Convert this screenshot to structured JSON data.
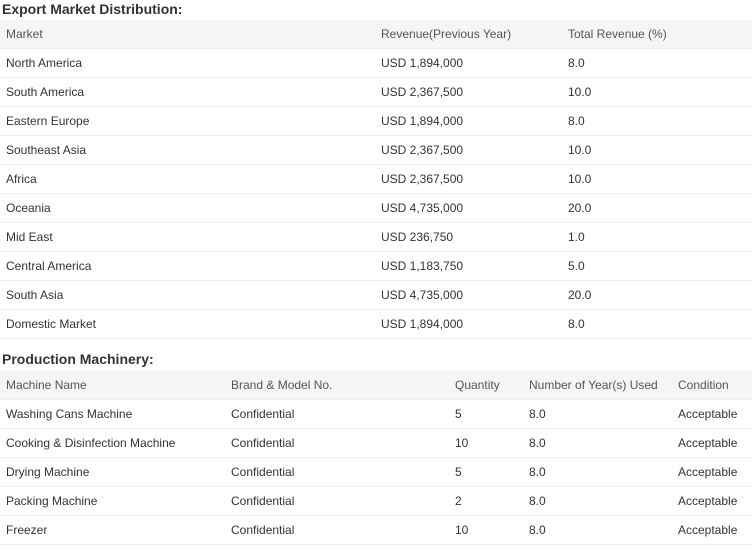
{
  "export": {
    "title": "Export Market Distribution:",
    "headers": [
      "Market",
      "Revenue(Previous Year)",
      "Total Revenue (%)"
    ],
    "rows": [
      [
        "North America",
        "USD 1,894,000",
        "8.0"
      ],
      [
        "South America",
        "USD 2,367,500",
        "10.0"
      ],
      [
        "Eastern Europe",
        "USD 1,894,000",
        "8.0"
      ],
      [
        "Southeast Asia",
        "USD 2,367,500",
        "10.0"
      ],
      [
        "Africa",
        "USD 2,367,500",
        "10.0"
      ],
      [
        "Oceania",
        "USD 4,735,000",
        "20.0"
      ],
      [
        "Mid East",
        "USD 236,750",
        "1.0"
      ],
      [
        "Central America",
        "USD 1,183,750",
        "5.0"
      ],
      [
        "South Asia",
        "USD 4,735,000",
        "20.0"
      ],
      [
        "Domestic Market",
        "USD 1,894,000",
        "8.0"
      ]
    ]
  },
  "machinery": {
    "title": "Production Machinery:",
    "headers": [
      "Machine Name",
      "Brand & Model No.",
      "Quantity",
      "Number of Year(s) Used",
      "Condition"
    ],
    "rows": [
      [
        "Washing Cans Machine",
        "Confidential",
        "5",
        "8.0",
        "Acceptable"
      ],
      [
        "Cooking & Disinfection Machine",
        "Confidential",
        "10",
        "8.0",
        "Acceptable"
      ],
      [
        "Drying Machine",
        "Confidential",
        "5",
        "8.0",
        "Acceptable"
      ],
      [
        "Packing Machine",
        "Confidential",
        "2",
        "8.0",
        "Acceptable"
      ],
      [
        "Freezer",
        "Confidential",
        "10",
        "8.0",
        "Acceptable"
      ]
    ]
  }
}
